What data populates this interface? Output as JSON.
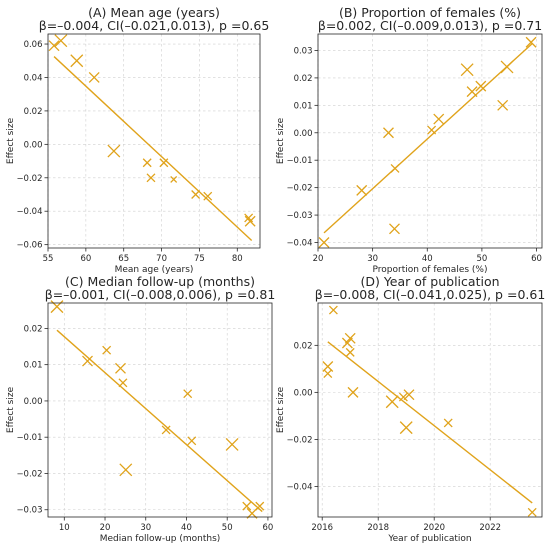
{
  "marker_color": "#E0A31B",
  "line_color": "#E0A31B",
  "chart_data": [
    {
      "type": "scatter",
      "title": "(A) Mean age (years)",
      "subtitle": "β=–0.004, CI(–0.021,0.013), p =0.65",
      "xlabel": "Mean age (years)",
      "ylabel": "Effect size",
      "xlim": [
        55,
        83
      ],
      "ylim": [
        -0.062,
        0.066
      ],
      "xticks": [
        55,
        60,
        65,
        70,
        75,
        80
      ],
      "xtick_labels": [
        "55",
        "60",
        "65",
        "70",
        "75",
        "80"
      ],
      "yticks": [
        -0.06,
        -0.04,
        -0.02,
        0.0,
        0.02,
        0.04,
        0.06
      ],
      "ytick_labels": [
        "−0.06",
        "−0.04",
        "−0.02",
        "0.00",
        "0.02",
        "0.04",
        "0.06"
      ],
      "grid": true,
      "points": [
        {
          "x": 55.8,
          "y": 0.059,
          "size": 5
        },
        {
          "x": 56.7,
          "y": 0.062,
          "size": 6
        },
        {
          "x": 58.8,
          "y": 0.05,
          "size": 6
        },
        {
          "x": 61.1,
          "y": 0.04,
          "size": 5
        },
        {
          "x": 63.7,
          "y": -0.004,
          "size": 6
        },
        {
          "x": 68.1,
          "y": -0.011,
          "size": 4
        },
        {
          "x": 68.6,
          "y": -0.02,
          "size": 4
        },
        {
          "x": 70.3,
          "y": -0.011,
          "size": 4
        },
        {
          "x": 71.6,
          "y": -0.021,
          "size": 3
        },
        {
          "x": 74.5,
          "y": -0.03,
          "size": 4
        },
        {
          "x": 76.1,
          "y": -0.031,
          "size": 4
        },
        {
          "x": 81.5,
          "y": -0.044,
          "size": 4
        },
        {
          "x": 81.7,
          "y": -0.046,
          "size": 5
        }
      ],
      "fit": [
        [
          55.8,
          0.0525
        ],
        [
          81.9,
          -0.0575
        ]
      ]
    },
    {
      "type": "scatter",
      "title": "(B) Proportion of females (%)",
      "subtitle": "β=0.002, CI(–0.009,0.013), p =0.71",
      "xlabel": "Proportion of females (%)",
      "ylabel": "Effect size",
      "xlim": [
        20,
        61
      ],
      "ylim": [
        -0.042,
        0.036
      ],
      "xticks": [
        20,
        30,
        40,
        50,
        60
      ],
      "xtick_labels": [
        "20",
        "30",
        "40",
        "50",
        "60"
      ],
      "yticks": [
        -0.04,
        -0.03,
        -0.02,
        -0.01,
        0.0,
        0.01,
        0.02,
        0.03
      ],
      "ytick_labels": [
        "−0.04",
        "−0.03",
        "−0.02",
        "−0.01",
        "0.00",
        "0.01",
        "0.02",
        "0.03"
      ],
      "grid": true,
      "points": [
        {
          "x": 21.1,
          "y": -0.04,
          "size": 5
        },
        {
          "x": 28.0,
          "y": -0.021,
          "size": 5
        },
        {
          "x": 32.9,
          "y": 0.0,
          "size": 5
        },
        {
          "x": 34.0,
          "y": -0.035,
          "size": 5
        },
        {
          "x": 34.1,
          "y": -0.013,
          "size": 4
        },
        {
          "x": 40.8,
          "y": 0.001,
          "size": 4
        },
        {
          "x": 42.1,
          "y": 0.005,
          "size": 5
        },
        {
          "x": 47.3,
          "y": 0.023,
          "size": 6
        },
        {
          "x": 48.2,
          "y": 0.015,
          "size": 5
        },
        {
          "x": 49.8,
          "y": 0.017,
          "size": 5
        },
        {
          "x": 53.8,
          "y": 0.01,
          "size": 5
        },
        {
          "x": 54.6,
          "y": 0.024,
          "size": 6
        },
        {
          "x": 59.0,
          "y": 0.033,
          "size": 5
        }
      ],
      "fit": [
        [
          21.1,
          -0.0365
        ],
        [
          59.2,
          0.0325
        ]
      ]
    },
    {
      "type": "scatter",
      "title": "(C) Median follow-up (months)",
      "subtitle": "β=–0.001, CI(–0.008,0.006), p =0.81",
      "xlabel": "Median follow-up (months)",
      "ylabel": "Effect size",
      "xlim": [
        6,
        61
      ],
      "ylim": [
        -0.032,
        0.027
      ],
      "xticks": [
        10,
        20,
        30,
        40,
        50,
        60
      ],
      "xtick_labels": [
        "10",
        "20",
        "30",
        "40",
        "50",
        "60"
      ],
      "yticks": [
        -0.03,
        -0.02,
        -0.01,
        0.0,
        0.01,
        0.02
      ],
      "ytick_labels": [
        "−0.03",
        "−0.02",
        "−0.01",
        "0.00",
        "0.01",
        "0.02"
      ],
      "grid": true,
      "points": [
        {
          "x": 8.2,
          "y": 0.026,
          "size": 6
        },
        {
          "x": 15.7,
          "y": 0.011,
          "size": 5
        },
        {
          "x": 20.4,
          "y": 0.014,
          "size": 4
        },
        {
          "x": 23.8,
          "y": 0.009,
          "size": 5
        },
        {
          "x": 24.4,
          "y": 0.005,
          "size": 4
        },
        {
          "x": 25.1,
          "y": -0.019,
          "size": 6
        },
        {
          "x": 35.0,
          "y": -0.008,
          "size": 4
        },
        {
          "x": 40.3,
          "y": 0.002,
          "size": 4
        },
        {
          "x": 41.3,
          "y": -0.011,
          "size": 4
        },
        {
          "x": 51.2,
          "y": -0.012,
          "size": 6
        },
        {
          "x": 54.8,
          "y": -0.029,
          "size": 4
        },
        {
          "x": 56.1,
          "y": -0.031,
          "size": 5
        },
        {
          "x": 58.0,
          "y": -0.029,
          "size": 4
        }
      ],
      "fit": [
        [
          8.2,
          0.0195
        ],
        [
          58.6,
          -0.0305
        ]
      ]
    },
    {
      "type": "scatter",
      "title": "(D) Year of publication",
      "subtitle": "β=–0.008, CI(–0.041,0.025), p =0.61",
      "xlabel": "Year of publication",
      "ylabel": "Effect size",
      "xlim": [
        2015.85,
        2023.85
      ],
      "ylim": [
        -0.053,
        0.038
      ],
      "xticks": [
        2016,
        2018,
        2020,
        2022
      ],
      "xtick_labels": [
        "2016",
        "2018",
        "2020",
        "2022"
      ],
      "yticks": [
        -0.04,
        -0.02,
        0.0,
        0.02
      ],
      "ytick_labels": [
        "−0.04",
        "−0.02",
        "0.00",
        "0.02"
      ],
      "grid": true,
      "points": [
        {
          "x": 2016.2,
          "y": 0.008,
          "size": 4
        },
        {
          "x": 2016.2,
          "y": 0.011,
          "size": 5
        },
        {
          "x": 2016.4,
          "y": 0.035,
          "size": 4
        },
        {
          "x": 2016.9,
          "y": 0.021,
          "size": 5
        },
        {
          "x": 2017.0,
          "y": 0.017,
          "size": 4
        },
        {
          "x": 2017.0,
          "y": 0.023,
          "size": 5
        },
        {
          "x": 2017.1,
          "y": 0.0,
          "size": 5
        },
        {
          "x": 2018.5,
          "y": -0.004,
          "size": 6
        },
        {
          "x": 2018.9,
          "y": -0.002,
          "size": 4
        },
        {
          "x": 2019.0,
          "y": -0.015,
          "size": 6
        },
        {
          "x": 2019.1,
          "y": -0.001,
          "size": 5
        },
        {
          "x": 2020.5,
          "y": -0.013,
          "size": 4
        },
        {
          "x": 2023.5,
          "y": -0.051,
          "size": 4
        }
      ],
      "fit": [
        [
          2016.2,
          0.0215
        ],
        [
          2023.5,
          -0.047
        ]
      ]
    }
  ]
}
